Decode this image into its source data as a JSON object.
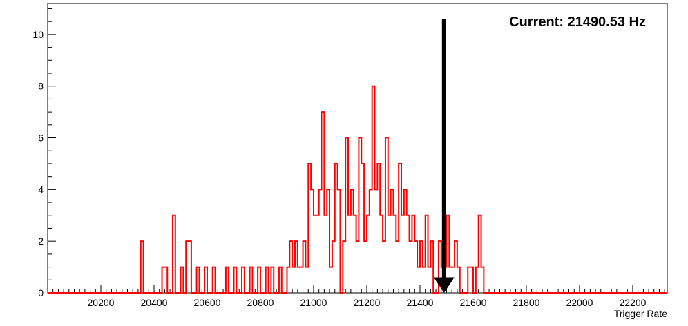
{
  "chart_data": {
    "type": "histogram",
    "xlabel": "Trigger Rate",
    "ylabel": "",
    "xlim": [
      20000,
      22330
    ],
    "ylim": [
      0,
      11.2
    ],
    "x_ticks": [
      20200,
      20400,
      20600,
      20800,
      21000,
      21200,
      21400,
      21600,
      21800,
      22000,
      22200
    ],
    "y_ticks": [
      0,
      2,
      4,
      6,
      8,
      10
    ],
    "bin_width": 10,
    "line_color": "#ff0000",
    "bins": [
      {
        "x": 20350,
        "count": 2
      },
      {
        "x": 20430,
        "count": 1
      },
      {
        "x": 20440,
        "count": 1
      },
      {
        "x": 20470,
        "count": 3
      },
      {
        "x": 20500,
        "count": 1
      },
      {
        "x": 20520,
        "count": 2
      },
      {
        "x": 20530,
        "count": 2
      },
      {
        "x": 20560,
        "count": 1
      },
      {
        "x": 20590,
        "count": 1
      },
      {
        "x": 20620,
        "count": 1
      },
      {
        "x": 20670,
        "count": 1
      },
      {
        "x": 20700,
        "count": 1
      },
      {
        "x": 20730,
        "count": 1
      },
      {
        "x": 20760,
        "count": 1
      },
      {
        "x": 20790,
        "count": 1
      },
      {
        "x": 20820,
        "count": 1
      },
      {
        "x": 20840,
        "count": 1
      },
      {
        "x": 20870,
        "count": 1
      },
      {
        "x": 20900,
        "count": 1
      },
      {
        "x": 20910,
        "count": 2
      },
      {
        "x": 20920,
        "count": 1
      },
      {
        "x": 20930,
        "count": 2
      },
      {
        "x": 20940,
        "count": 1
      },
      {
        "x": 20950,
        "count": 1
      },
      {
        "x": 20960,
        "count": 2
      },
      {
        "x": 20970,
        "count": 1
      },
      {
        "x": 20980,
        "count": 5
      },
      {
        "x": 20990,
        "count": 4
      },
      {
        "x": 21000,
        "count": 3
      },
      {
        "x": 21010,
        "count": 3
      },
      {
        "x": 21020,
        "count": 4
      },
      {
        "x": 21030,
        "count": 7
      },
      {
        "x": 21040,
        "count": 3
      },
      {
        "x": 21050,
        "count": 4
      },
      {
        "x": 21060,
        "count": 1
      },
      {
        "x": 21070,
        "count": 2
      },
      {
        "x": 21080,
        "count": 5
      },
      {
        "x": 21090,
        "count": 4
      },
      {
        "x": 21100,
        "count": 0
      },
      {
        "x": 21110,
        "count": 2
      },
      {
        "x": 21120,
        "count": 6
      },
      {
        "x": 21130,
        "count": 3
      },
      {
        "x": 21140,
        "count": 4
      },
      {
        "x": 21150,
        "count": 3
      },
      {
        "x": 21160,
        "count": 2
      },
      {
        "x": 21170,
        "count": 6
      },
      {
        "x": 21180,
        "count": 5
      },
      {
        "x": 21190,
        "count": 2
      },
      {
        "x": 21200,
        "count": 3
      },
      {
        "x": 21210,
        "count": 4
      },
      {
        "x": 21220,
        "count": 8
      },
      {
        "x": 21230,
        "count": 4
      },
      {
        "x": 21240,
        "count": 5
      },
      {
        "x": 21250,
        "count": 3
      },
      {
        "x": 21260,
        "count": 2
      },
      {
        "x": 21270,
        "count": 6
      },
      {
        "x": 21280,
        "count": 3
      },
      {
        "x": 21290,
        "count": 4
      },
      {
        "x": 21300,
        "count": 3
      },
      {
        "x": 21310,
        "count": 2
      },
      {
        "x": 21320,
        "count": 5
      },
      {
        "x": 21330,
        "count": 3
      },
      {
        "x": 21340,
        "count": 4
      },
      {
        "x": 21350,
        "count": 3
      },
      {
        "x": 21360,
        "count": 2
      },
      {
        "x": 21370,
        "count": 3
      },
      {
        "x": 21380,
        "count": 2
      },
      {
        "x": 21390,
        "count": 1
      },
      {
        "x": 21400,
        "count": 2
      },
      {
        "x": 21410,
        "count": 1
      },
      {
        "x": 21420,
        "count": 3
      },
      {
        "x": 21430,
        "count": 1
      },
      {
        "x": 21440,
        "count": 2
      },
      {
        "x": 21470,
        "count": 2
      },
      {
        "x": 21480,
        "count": 1
      },
      {
        "x": 21490,
        "count": 1
      },
      {
        "x": 21500,
        "count": 3
      },
      {
        "x": 21510,
        "count": 1
      },
      {
        "x": 21520,
        "count": 1
      },
      {
        "x": 21530,
        "count": 2
      },
      {
        "x": 21540,
        "count": 1
      },
      {
        "x": 21580,
        "count": 1
      },
      {
        "x": 21590,
        "count": 1
      },
      {
        "x": 21610,
        "count": 1
      },
      {
        "x": 21620,
        "count": 3
      },
      {
        "x": 21630,
        "count": 1
      }
    ],
    "marker": {
      "x": 21490.53,
      "label": "Current: 21490.53 Hz",
      "color": "#000000"
    }
  }
}
